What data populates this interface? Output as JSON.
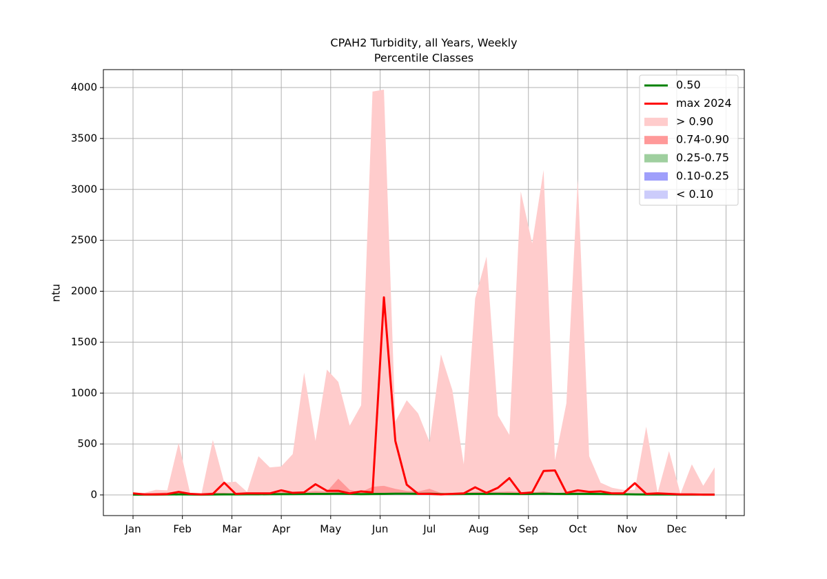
{
  "chart_data": {
    "type": "line",
    "title": "CPAH2 Turbidity, all Years, Weekly",
    "subtitle": "Percentile Classes",
    "y_label": "ntu",
    "x": [
      0,
      1,
      2,
      3,
      4,
      5,
      6,
      7,
      8,
      9,
      10,
      11,
      12,
      13,
      14,
      15,
      16,
      17,
      18,
      19,
      20,
      21,
      22,
      23,
      24,
      25,
      26,
      27,
      28,
      29,
      30,
      31,
      32,
      33,
      34,
      35,
      36,
      37,
      38,
      39,
      40,
      41,
      42,
      43,
      44,
      45,
      46,
      47,
      48,
      49,
      50,
      51
    ],
    "xlim": [
      -2.6,
      53.6
    ],
    "xticks": [
      {
        "value": 0,
        "label": "Jan"
      },
      {
        "value": 4.33,
        "label": "Feb"
      },
      {
        "value": 8.67,
        "label": "Mar"
      },
      {
        "value": 13,
        "label": "Apr"
      },
      {
        "value": 17.33,
        "label": "May"
      },
      {
        "value": 21.67,
        "label": "Jun"
      },
      {
        "value": 26,
        "label": "Jul"
      },
      {
        "value": 30.33,
        "label": "Aug"
      },
      {
        "value": 34.67,
        "label": "Sep"
      },
      {
        "value": 39,
        "label": "Oct"
      },
      {
        "value": 43.33,
        "label": "Nov"
      },
      {
        "value": 47.67,
        "label": "Dec"
      },
      {
        "value": 52,
        "label": null
      }
    ],
    "ylim": [
      -203,
      4176
    ],
    "yticks": [
      0,
      500,
      1000,
      1500,
      2000,
      2500,
      3000,
      3500,
      4000
    ],
    "grid": true,
    "legend": "upper right",
    "bands": [
      {
        "name": "> 0.90",
        "color": "#ffcccc",
        "values": [
          10,
          20,
          50,
          45,
          510,
          20,
          10,
          540,
          120,
          130,
          30,
          380,
          270,
          280,
          400,
          1200,
          530,
          1230,
          1110,
          680,
          880,
          3960,
          3980,
          720,
          930,
          800,
          520,
          1380,
          1030,
          300,
          1930,
          2340,
          780,
          590,
          2980,
          2470,
          3190,
          340,
          900,
          3100,
          380,
          120,
          70,
          50,
          50,
          670,
          20,
          430,
          10,
          300,
          90,
          270
        ]
      },
      {
        "name": "0.74-0.90",
        "color": "#ff9999",
        "values": [
          10,
          15,
          20,
          25,
          35,
          15,
          10,
          25,
          20,
          15,
          15,
          25,
          20,
          30,
          25,
          30,
          40,
          35,
          160,
          50,
          30,
          80,
          90,
          60,
          40,
          35,
          60,
          20,
          15,
          20,
          30,
          35,
          30,
          35,
          30,
          25,
          35,
          20,
          25,
          30,
          25,
          20,
          20,
          15,
          10,
          10,
          15,
          10,
          8,
          8,
          5,
          5
        ]
      },
      {
        "name": "0.25-0.75",
        "color": "#9fcf9f",
        "values": [
          6,
          6,
          6,
          7,
          8,
          7,
          6,
          7,
          8,
          8,
          9,
          9,
          10,
          12,
          12,
          13,
          14,
          14,
          16,
          14,
          12,
          13,
          14,
          16,
          16,
          15,
          16,
          12,
          12,
          13,
          14,
          14,
          15,
          14,
          13,
          14,
          16,
          14,
          13,
          14,
          14,
          13,
          12,
          11,
          8,
          7,
          7,
          7,
          6,
          6,
          6,
          6
        ]
      },
      {
        "name": "0.10-0.25",
        "color": "#9f9ffb",
        "values": [
          2,
          2,
          2,
          2,
          3,
          2,
          2,
          2,
          3,
          3,
          3,
          3,
          4,
          4,
          4,
          5,
          5,
          5,
          6,
          5,
          4,
          5,
          5,
          6,
          6,
          5,
          6,
          4,
          4,
          5,
          5,
          5,
          5,
          5,
          5,
          5,
          6,
          5,
          5,
          5,
          5,
          5,
          4,
          4,
          3,
          2,
          2,
          2,
          2,
          2,
          2,
          2
        ]
      },
      {
        "name": "< 0.10",
        "color": "#ccccfb",
        "values": [
          1,
          1,
          1,
          1,
          1,
          1,
          1,
          1,
          1,
          1,
          1,
          1,
          2,
          2,
          2,
          2,
          2,
          2,
          2,
          2,
          2,
          2,
          2,
          2,
          2,
          2,
          2,
          2,
          2,
          2,
          2,
          2,
          2,
          2,
          2,
          2,
          2,
          2,
          2,
          2,
          2,
          2,
          2,
          2,
          1,
          1,
          1,
          1,
          1,
          1,
          1,
          1
        ]
      }
    ],
    "series": [
      {
        "name": "0.50",
        "color": "#008000",
        "values": [
          3,
          3,
          3,
          4,
          5,
          4,
          3,
          4,
          5,
          5,
          6,
          6,
          7,
          8,
          8,
          9,
          10,
          10,
          12,
          10,
          8,
          9,
          10,
          12,
          12,
          11,
          12,
          8,
          8,
          9,
          10,
          10,
          11,
          10,
          9,
          10,
          12,
          10,
          9,
          10,
          10,
          9,
          8,
          7,
          5,
          4,
          4,
          4,
          3,
          3,
          3,
          3
        ]
      },
      {
        "name": "max 2024",
        "color": "#ff0000",
        "values": [
          15,
          5,
          5,
          8,
          30,
          10,
          5,
          10,
          120,
          10,
          15,
          15,
          15,
          45,
          20,
          25,
          105,
          40,
          40,
          15,
          35,
          25,
          1940,
          530,
          100,
          10,
          10,
          5,
          10,
          15,
          75,
          20,
          70,
          165,
          15,
          25,
          235,
          240,
          20,
          45,
          30,
          35,
          15,
          15,
          115,
          10,
          15,
          10,
          5,
          5,
          3,
          3
        ]
      }
    ]
  }
}
